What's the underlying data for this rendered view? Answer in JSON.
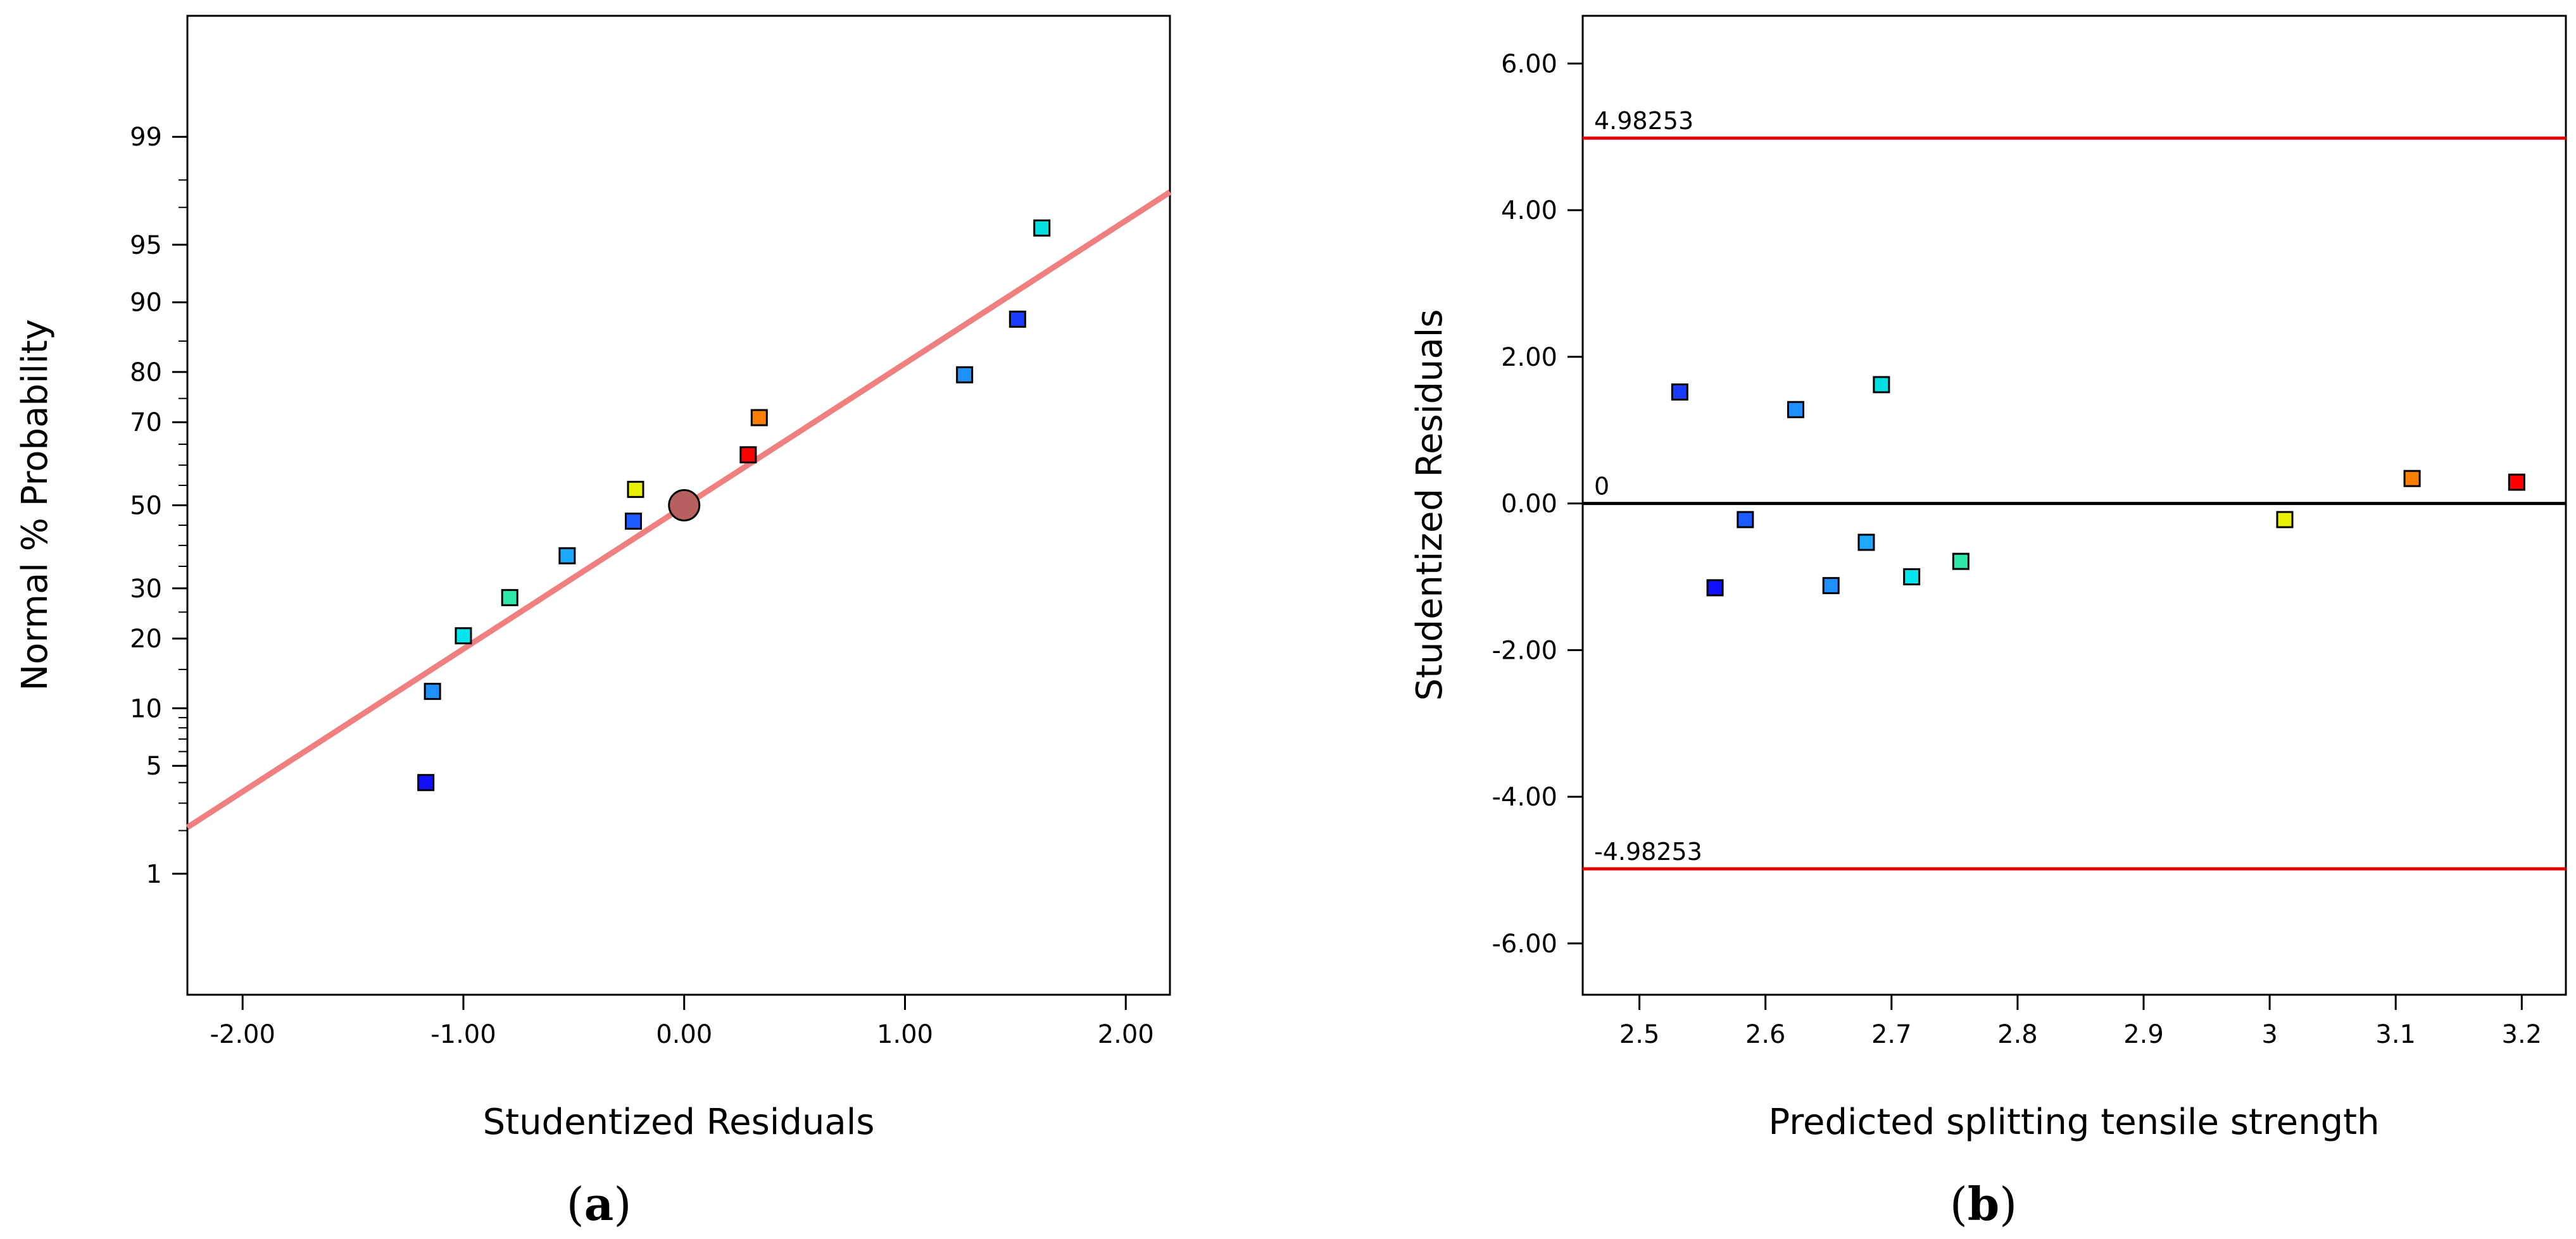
{
  "chart_data": [
    {
      "type": "scatter",
      "panel_label_open": "(",
      "panel_label_letter": "a",
      "panel_label_close": ")",
      "xlabel": "Studentized Residuals",
      "ylabel": "Normal % Probability",
      "xlim": [
        -2.25,
        2.2
      ],
      "ylim_percent": [
        0.1,
        99.9
      ],
      "xticks": [
        -2,
        -1,
        0,
        1,
        2
      ],
      "xtick_labels": [
        "-2.00",
        "-1.00",
        "0.00",
        "1.00",
        "2.00"
      ],
      "yticks": [
        1,
        5,
        10,
        20,
        30,
        50,
        70,
        80,
        90,
        95,
        99
      ],
      "ytick_labels": [
        "1",
        "5",
        "10",
        "20",
        "30",
        "50",
        "70",
        "80",
        "90",
        "95",
        "99"
      ],
      "minor_yticks": [
        2,
        3,
        4,
        6,
        7,
        8,
        9,
        15,
        25,
        35,
        40,
        45,
        55,
        60,
        65,
        75,
        85,
        97,
        98
      ],
      "fit_line": {
        "color": "#f08080",
        "x": [
          -2.25,
          2.2
        ],
        "percent": [
          2.1,
          97.6
        ]
      },
      "points": [
        {
          "x": -1.17,
          "percent": 4.0,
          "color": "#1010ff"
        },
        {
          "x": -1.14,
          "percent": 12.0,
          "color": "#1e90ff"
        },
        {
          "x": -1.0,
          "percent": 20.5,
          "color": "#00e5ee"
        },
        {
          "x": -0.79,
          "percent": 28.0,
          "color": "#2ee8a8"
        },
        {
          "x": -0.53,
          "percent": 37.5,
          "color": "#1ea8ff"
        },
        {
          "x": -0.23,
          "percent": 46.0,
          "color": "#1a5cff"
        },
        {
          "x": -0.22,
          "percent": 54.0,
          "color": "#e8f000"
        },
        {
          "x": 0.29,
          "percent": 62.5,
          "color": "#ff0000"
        },
        {
          "x": 0.34,
          "percent": 71.0,
          "color": "#ff7f00"
        },
        {
          "x": 1.27,
          "percent": 79.5,
          "color": "#1e90ff"
        },
        {
          "x": 1.51,
          "percent": 88.0,
          "color": "#1a3cff"
        },
        {
          "x": 1.62,
          "percent": 96.0,
          "color": "#00e0e0"
        }
      ],
      "center_marker": {
        "x": 0.0,
        "percent": 50,
        "color": "#b86060"
      }
    },
    {
      "type": "scatter",
      "panel_label_open": "(",
      "panel_label_letter": "b",
      "panel_label_close": ")",
      "xlabel": "Predicted splitting tensile strength",
      "ylabel": "Studentized Residuals",
      "xlim": [
        2.455,
        3.235
      ],
      "ylim": [
        -6.7,
        6.65
      ],
      "xticks": [
        2.5,
        2.6,
        2.7,
        2.8,
        2.9,
        3.0,
        3.1,
        3.2
      ],
      "xtick_labels": [
        "2.5",
        "2.6",
        "2.7",
        "2.8",
        "2.9",
        "3",
        "3.1",
        "3.2"
      ],
      "yticks": [
        -6,
        -4,
        -2,
        0,
        2,
        4,
        6
      ],
      "ytick_labels": [
        "-6.00",
        "-4.00",
        "-2.00",
        "0.00",
        "2.00",
        "4.00",
        "6.00"
      ],
      "reference_lines": [
        {
          "y": 4.98253,
          "label": "4.98253",
          "color": "#e00000"
        },
        {
          "y": 0,
          "label": "0",
          "color": "#000000"
        },
        {
          "y": -4.98253,
          "label": "-4.98253",
          "color": "#e00000"
        }
      ],
      "points": [
        {
          "x": 2.532,
          "y": 1.52,
          "color": "#1a3cff"
        },
        {
          "x": 2.56,
          "y": -1.15,
          "color": "#1010ff"
        },
        {
          "x": 2.584,
          "y": -0.22,
          "color": "#1a5cff"
        },
        {
          "x": 2.624,
          "y": 1.28,
          "color": "#1e90ff"
        },
        {
          "x": 2.652,
          "y": -1.12,
          "color": "#1e90ff"
        },
        {
          "x": 2.68,
          "y": -0.53,
          "color": "#1ea8ff"
        },
        {
          "x": 2.692,
          "y": 1.62,
          "color": "#00e0e0"
        },
        {
          "x": 2.716,
          "y": -1.0,
          "color": "#00e5ee"
        },
        {
          "x": 2.755,
          "y": -0.79,
          "color": "#2ee8a8"
        },
        {
          "x": 3.012,
          "y": -0.22,
          "color": "#e8f000"
        },
        {
          "x": 3.113,
          "y": 0.34,
          "color": "#ff7f00"
        },
        {
          "x": 3.196,
          "y": 0.29,
          "color": "#ff0000"
        }
      ]
    }
  ]
}
